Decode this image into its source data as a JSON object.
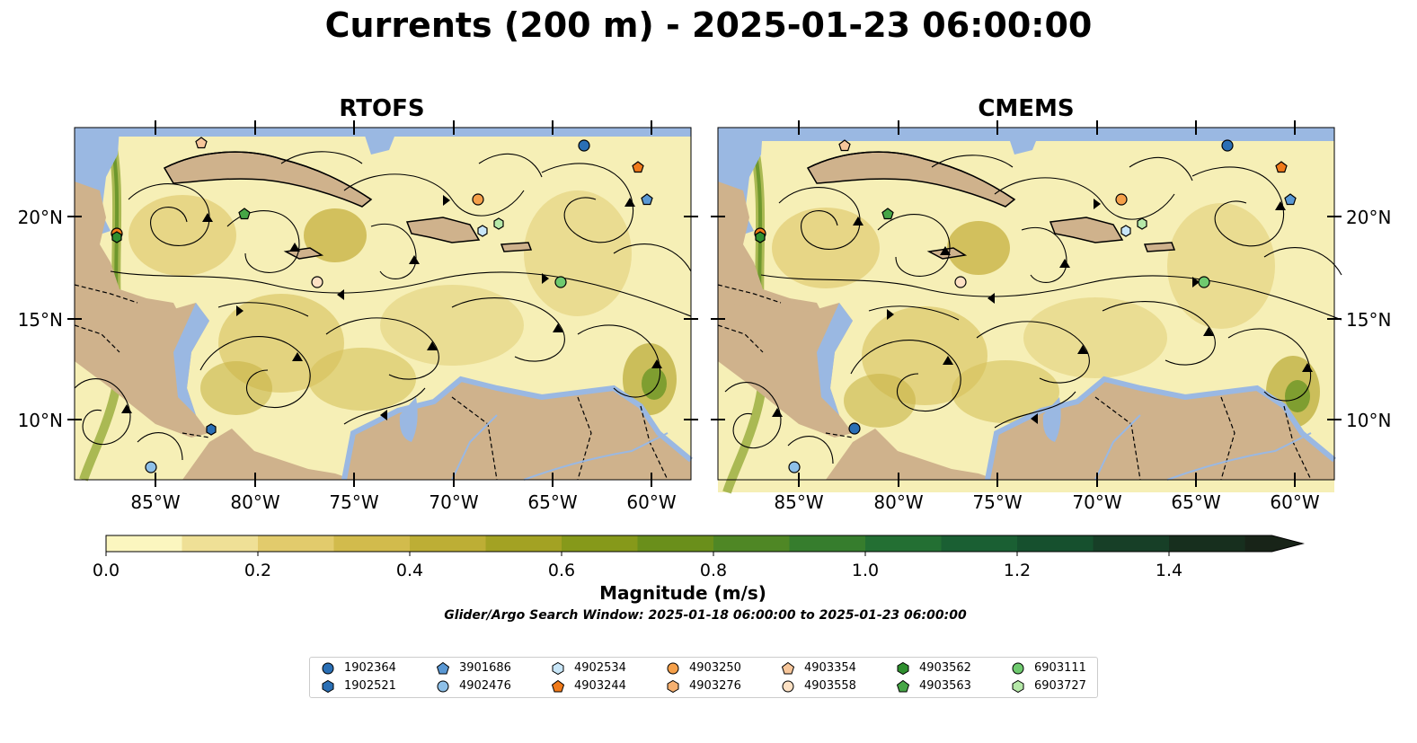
{
  "title": "Currents (200 m) - 2025-01-23 06:00:00",
  "panels": [
    {
      "name": "RTOFS"
    },
    {
      "name": "CMEMS"
    }
  ],
  "y_ticks": [
    "20°N",
    "15°N",
    "10°N"
  ],
  "x_ticks": [
    "85°W",
    "80°W",
    "75°W",
    "70°W",
    "65°W",
    "60°W"
  ],
  "colorbar": {
    "title": "Magnitude (m/s)",
    "tick_labels": [
      "0.0",
      "0.2",
      "0.4",
      "0.6",
      "0.8",
      "1.0",
      "1.2",
      "1.4"
    ],
    "colors": [
      "#fbf6bf",
      "#efe096",
      "#e2cb6c",
      "#d2bb4c",
      "#bdae35",
      "#a3a223",
      "#86991a",
      "#6a8f1b",
      "#4f8725",
      "#367d2d",
      "#236f33",
      "#1a5f33",
      "#16502e",
      "#173f27",
      "#172f1e",
      "#182418"
    ]
  },
  "search_window": "Glider/Argo Search Window: 2025-01-18 06:00:00 to 2025-01-23 06:00:00",
  "colors": {
    "ocean": "#9ab8e2",
    "land": "#cfb28c",
    "field_low": "#f6efb6",
    "field_mid": "#d6c25a",
    "field_high": "#5a8a22"
  },
  "legend": [
    {
      "id": "1902364",
      "marker": "circle",
      "color": "#2a6fb5"
    },
    {
      "id": "1902521",
      "marker": "hexagon",
      "color": "#2a6fb5"
    },
    {
      "id": "3901686",
      "marker": "pentagon",
      "color": "#5a98d4"
    },
    {
      "id": "4902476",
      "marker": "circle",
      "color": "#8ec0e8"
    },
    {
      "id": "4902534",
      "marker": "hexagon",
      "color": "#c8e6f8"
    },
    {
      "id": "4903244",
      "marker": "pentagon",
      "color": "#f07a1a"
    },
    {
      "id": "4903250",
      "marker": "circle",
      "color": "#f5a04a"
    },
    {
      "id": "4903276",
      "marker": "hexagon",
      "color": "#f5b070"
    },
    {
      "id": "4903354",
      "marker": "pentagon",
      "color": "#f7c69a"
    },
    {
      "id": "4903558",
      "marker": "circle",
      "color": "#fde1c4"
    },
    {
      "id": "4903562",
      "marker": "hexagon",
      "color": "#2f8f2f"
    },
    {
      "id": "4903563",
      "marker": "pentagon",
      "color": "#46a646"
    },
    {
      "id": "6903111",
      "marker": "circle",
      "color": "#6fca6f"
    },
    {
      "id": "6903727",
      "marker": "hexagon",
      "color": "#b5e8a8"
    }
  ]
}
